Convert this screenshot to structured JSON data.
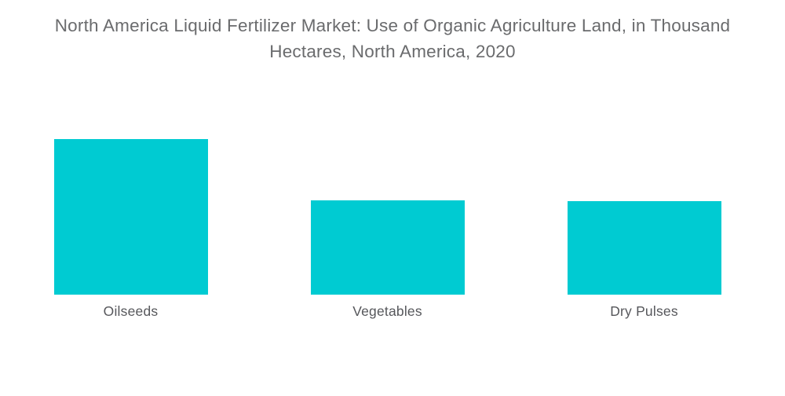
{
  "page": {
    "background": "#ffffff"
  },
  "chart_data": {
    "type": "bar",
    "title": "North America Liquid Fertilizer Market: Use of Organic Agriculture Land, in Thousand Hectares, North America, 2020",
    "categories": [
      "Oilseeds",
      "Vegetables",
      "Dry Pulses"
    ],
    "values": [
      198,
      120,
      119
    ],
    "value_units": "thousand hectares (no numeric axis shown; values are relative bar heights)",
    "xlabel": "",
    "ylabel": "",
    "axes_visible": false,
    "grid": false,
    "legend": false,
    "bar_color": "#00cbd2",
    "title_color": "#6a6b6d",
    "label_color": "#56575b",
    "background": "#ffffff"
  }
}
